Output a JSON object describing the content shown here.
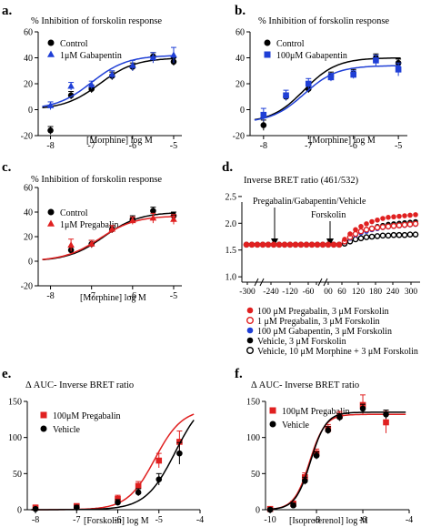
{
  "chart_data": [
    {
      "type": "scatter",
      "panel_label": "a.",
      "title": "% Inhibition of forskolin response",
      "xlabel": "[Morphine] log M",
      "ylabel": "",
      "xlim": [
        -8.3,
        -4.8
      ],
      "ylim": [
        -20,
        60
      ],
      "xticks": [
        "-8",
        "-7",
        "-6",
        "-5"
      ],
      "xtick_values": [
        -8,
        -7,
        -6,
        -5
      ],
      "yticks": [
        "-20",
        "0",
        "20",
        "40",
        "60"
      ],
      "ytick_values": [
        -20,
        0,
        20,
        40,
        60
      ],
      "legend_position": "top-left",
      "series": [
        {
          "name": "Control",
          "color": "#000000",
          "marker": "circle",
          "x": [
            -8,
            -7.5,
            -7,
            -6.5,
            -6,
            -5.5,
            -5
          ],
          "y": [
            -16,
            11,
            16,
            26,
            33,
            41,
            37
          ],
          "err": [
            3,
            3,
            3,
            3,
            3,
            3,
            3
          ],
          "fit": {
            "bottom": 0,
            "top": 40,
            "ec50_log": -6.8,
            "hill": 1
          }
        },
        {
          "name": "1μM Gabapentin",
          "color": "#1f3fd6",
          "marker": "triangle",
          "x": [
            -8,
            -7.5,
            -7,
            -6.5,
            -6,
            -5.5,
            -5
          ],
          "y": [
            3,
            18,
            19,
            27,
            34,
            40,
            42
          ],
          "err": [
            3,
            3,
            3,
            3,
            4,
            4,
            6
          ],
          "fit": {
            "bottom": 0,
            "top": 42,
            "ec50_log": -7.0,
            "hill": 1
          }
        }
      ]
    },
    {
      "type": "scatter",
      "panel_label": "b.",
      "title": "% Inhibition of forskolin response",
      "xlabel": "[Morphine] log M",
      "ylabel": "",
      "xlim": [
        -8.3,
        -4.8
      ],
      "ylim": [
        -20,
        60
      ],
      "xticks": [
        "-8",
        "-7",
        "-6",
        "-5"
      ],
      "xtick_values": [
        -8,
        -7,
        -6,
        -5
      ],
      "yticks": [
        "-20",
        "0",
        "20",
        "40",
        "60"
      ],
      "ytick_values": [
        -20,
        0,
        20,
        40,
        60
      ],
      "legend_position": "top-left",
      "series": [
        {
          "name": "Control",
          "color": "#000000",
          "marker": "circle",
          "x": [
            -8,
            -7.5,
            -7,
            -6.5,
            -6,
            -5.5,
            -5
          ],
          "y": [
            -12,
            10,
            16,
            26,
            28,
            40,
            36
          ],
          "err": [
            4,
            3,
            3,
            3,
            3,
            3,
            3
          ],
          "fit": {
            "bottom": -10,
            "top": 40,
            "ec50_log": -7.1,
            "hill": 1.2
          }
        },
        {
          "name": "100μM Gabapentin",
          "color": "#1f3fd6",
          "marker": "square",
          "x": [
            -8,
            -7.5,
            -7,
            -6.5,
            -6,
            -5.5,
            -5
          ],
          "y": [
            -4,
            11,
            20,
            25,
            27,
            38,
            31
          ],
          "err": [
            5,
            4,
            4,
            3,
            3,
            4,
            5
          ],
          "fit": {
            "bottom": -10,
            "top": 34,
            "ec50_log": -7.1,
            "hill": 1.2
          }
        }
      ]
    },
    {
      "type": "scatter",
      "panel_label": "c.",
      "title": "% Inhibition of forskolin response",
      "xlabel": "[Morphine] log M",
      "ylabel": "",
      "xlim": [
        -8.3,
        -4.8
      ],
      "ylim": [
        -20,
        60
      ],
      "xticks": [
        "-8",
        "-7",
        "-6",
        "-5"
      ],
      "xtick_values": [
        -8,
        -7,
        -6,
        -5
      ],
      "yticks": [
        "-20",
        "0",
        "20",
        "40",
        "60"
      ],
      "ytick_values": [
        -20,
        0,
        20,
        40,
        60
      ],
      "legend_position": "top-left",
      "series": [
        {
          "name": "Control",
          "color": "#000000",
          "marker": "circle",
          "x": [
            -7.5,
            -7,
            -6.5,
            -6,
            -5.5,
            -5
          ],
          "y": [
            9,
            14,
            26,
            34,
            41,
            37
          ],
          "err": [
            3,
            3,
            3,
            3,
            3,
            3
          ],
          "fit": {
            "bottom": 0,
            "top": 40,
            "ec50_log": -6.7,
            "hill": 1
          }
        },
        {
          "name": "1μM Pregabalin",
          "color": "#e02020",
          "marker": "triangle",
          "x": [
            -7.5,
            -7,
            -6.5,
            -6,
            -5.5,
            -5
          ],
          "y": [
            13,
            14,
            26,
            33,
            35,
            34
          ],
          "err": [
            5,
            3,
            3,
            3,
            4,
            4
          ],
          "fit": {
            "bottom": 0,
            "top": 37,
            "ec50_log": -6.8,
            "hill": 1
          }
        }
      ]
    },
    {
      "type": "line",
      "panel_label": "d.",
      "title": "Inverse BRET ratio (461/532)",
      "xlabel": "",
      "ylabel": "",
      "xticks": [
        "-300",
        "-240",
        "-120",
        "-60",
        "",
        "00",
        "60",
        "120",
        "180",
        "240",
        "300"
      ],
      "yticks": [
        "1.0",
        "1.5",
        "2.0",
        "2.5"
      ],
      "ytick_values": [
        1.0,
        1.5,
        2.0,
        2.5
      ],
      "ylim": [
        0.9,
        2.6
      ],
      "annotations": [
        "Pregabalin/Gabapentin/Vehicle",
        "Forskolin"
      ],
      "legend_position": "below",
      "series": [
        {
          "name": "100 μM Pregabalin, 3 μM Forskolin",
          "color": "#e02020",
          "marker": "filled-circle",
          "y": [
            1.6,
            1.6,
            1.6,
            1.6,
            1.6,
            1.6,
            1.6,
            1.6,
            1.6,
            1.6,
            1.6,
            1.6,
            1.6,
            1.6,
            1.6,
            1.6,
            1.6,
            1.6,
            1.7,
            1.8,
            1.88,
            1.94,
            1.99,
            2.03,
            2.06,
            2.09,
            2.11,
            2.12,
            2.13,
            2.14,
            2.15,
            2.16
          ]
        },
        {
          "name": "1 μM Pregabalin, 3 μM Forskolin",
          "color": "#e02020",
          "marker": "open-circle",
          "y": [
            1.6,
            1.6,
            1.6,
            1.6,
            1.6,
            1.6,
            1.6,
            1.6,
            1.6,
            1.6,
            1.6,
            1.6,
            1.6,
            1.6,
            1.6,
            1.6,
            1.6,
            1.6,
            1.66,
            1.74,
            1.8,
            1.85,
            1.88,
            1.9,
            1.92,
            1.93,
            1.94,
            1.95,
            1.96,
            1.97,
            1.98,
            1.99
          ]
        },
        {
          "name": "100 μM Gabapentin, 3 μM Forskolin",
          "color": "#1f3fd6",
          "marker": "filled-circle",
          "y": [
            1.6,
            1.6,
            1.6,
            1.6,
            1.6,
            1.6,
            1.6,
            1.6,
            1.6,
            1.6,
            1.6,
            1.6,
            1.6,
            1.6,
            1.6,
            1.6,
            1.6,
            1.6,
            1.65,
            1.72,
            1.78,
            1.82,
            1.85,
            1.88,
            1.9,
            1.92,
            1.93,
            1.94,
            1.95,
            1.96,
            1.97,
            1.98
          ]
        },
        {
          "name": "Vehicle, 3 μM Forskolin",
          "color": "#000000",
          "marker": "filled-circle",
          "y": [
            1.6,
            1.6,
            1.6,
            1.6,
            1.6,
            1.6,
            1.6,
            1.6,
            1.6,
            1.6,
            1.6,
            1.6,
            1.6,
            1.6,
            1.6,
            1.6,
            1.6,
            1.6,
            1.66,
            1.74,
            1.8,
            1.84,
            1.88,
            1.91,
            1.94,
            1.96,
            1.98,
            1.99,
            2.0,
            2.01,
            2.02,
            2.03
          ]
        },
        {
          "name": "Vehicle, 10 μM Morphine + 3 μM Forskolin",
          "color": "#000000",
          "marker": "open-circle",
          "y": [
            1.6,
            1.6,
            1.6,
            1.6,
            1.6,
            1.6,
            1.6,
            1.6,
            1.6,
            1.6,
            1.6,
            1.6,
            1.6,
            1.6,
            1.6,
            1.6,
            1.6,
            1.6,
            1.62,
            1.66,
            1.7,
            1.72,
            1.74,
            1.75,
            1.76,
            1.77,
            1.77,
            1.78,
            1.78,
            1.78,
            1.79,
            1.79
          ]
        }
      ]
    },
    {
      "type": "scatter",
      "panel_label": "e.",
      "title": "Δ AUC- Inverse BRET ratio",
      "xlabel": "[Forskolin] log M",
      "ylabel": "",
      "xlim": [
        -8.2,
        -4
      ],
      "ylim": [
        0,
        150
      ],
      "xticks": [
        "-8",
        "-7",
        "-6",
        "-5",
        "-4"
      ],
      "xtick_values": [
        -8,
        -7,
        -6,
        -5,
        -4
      ],
      "yticks": [
        "0",
        "50",
        "100",
        "150"
      ],
      "ytick_values": [
        0,
        50,
        100,
        150
      ],
      "legend_position": "top-left",
      "series": [
        {
          "name": "100μM Pregabalin",
          "color": "#e02020",
          "marker": "square",
          "x": [
            -8,
            -7,
            -6,
            -5.5,
            -5,
            -4.5
          ],
          "y": [
            3,
            5,
            15,
            33,
            68,
            94
          ],
          "err": [
            3,
            3,
            5,
            6,
            10,
            15
          ],
          "fit": {
            "bottom": 0,
            "top": 140,
            "ec50_log": -5.1,
            "hill": 1.3
          }
        },
        {
          "name": "Vehicle",
          "color": "#000000",
          "marker": "circle",
          "x": [
            -8,
            -7,
            -6,
            -5.5,
            -5,
            -4.5
          ],
          "y": [
            1,
            3,
            10,
            24,
            42,
            78
          ],
          "err": [
            2,
            3,
            4,
            5,
            8,
            15
          ],
          "fit": {
            "bottom": 0,
            "top": 160,
            "ec50_log": -4.6,
            "hill": 1.2
          }
        }
      ]
    },
    {
      "type": "scatter",
      "panel_label": "f.",
      "title": "Δ AUC- Inverse BRET ratio",
      "xlabel": "[Isoproterenol] log M",
      "ylabel": "",
      "xlim": [
        -10.2,
        -4
      ],
      "ylim": [
        0,
        150
      ],
      "xticks": [
        "-10",
        "-8",
        "-6",
        "-4"
      ],
      "xtick_values": [
        -10,
        -8,
        -6,
        -4
      ],
      "yticks": [
        "0",
        "50",
        "100",
        "150"
      ],
      "ytick_values": [
        0,
        50,
        100,
        150
      ],
      "legend_position": "top-left",
      "series": [
        {
          "name": "100μM Pregabalin",
          "color": "#e02020",
          "marker": "square",
          "x": [
            -10,
            -9,
            -8.5,
            -8,
            -7.5,
            -7,
            -6,
            -5
          ],
          "y": [
            1,
            8,
            45,
            78,
            112,
            130,
            145,
            121
          ],
          "err": [
            2,
            4,
            6,
            6,
            6,
            6,
            14,
            15
          ],
          "fit": {
            "bottom": 0,
            "top": 132,
            "ec50_log": -8.3,
            "hill": 1.3
          }
        },
        {
          "name": "Vehicle",
          "color": "#000000",
          "marker": "circle",
          "x": [
            -10,
            -9,
            -8.5,
            -8,
            -7.5,
            -7,
            -6,
            -5
          ],
          "y": [
            0,
            6,
            40,
            75,
            110,
            128,
            140,
            132
          ],
          "err": [
            2,
            3,
            5,
            5,
            5,
            5,
            6,
            6
          ],
          "fit": {
            "bottom": 0,
            "top": 135,
            "ec50_log": -8.25,
            "hill": 1.3
          }
        }
      ]
    }
  ]
}
